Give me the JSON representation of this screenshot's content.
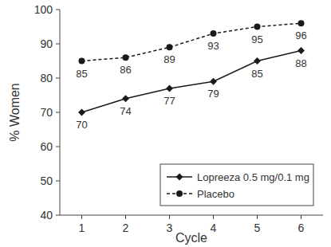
{
  "chart_data": {
    "type": "line",
    "xlabel": "Cycle",
    "ylabel": "% Women",
    "categories": [
      "1",
      "2",
      "3",
      "4",
      "5",
      "6"
    ],
    "series": [
      {
        "name": "Lopreeza 0.5 mg/0.1 mg",
        "color": "#1a1a1a",
        "marker": "diamond",
        "line_style": "solid",
        "values": [
          70,
          74,
          77,
          79,
          85,
          88
        ]
      },
      {
        "name": "Placebo",
        "color": "#1a1a1a",
        "marker": "circle",
        "line_style": "dashed",
        "values": [
          85,
          86,
          89,
          93,
          95,
          96
        ]
      }
    ],
    "ylim": [
      40,
      100
    ],
    "yticks": [
      40,
      50,
      60,
      70,
      80,
      90,
      100
    ],
    "grid": false,
    "legend": "lower right",
    "data_labels": true
  }
}
